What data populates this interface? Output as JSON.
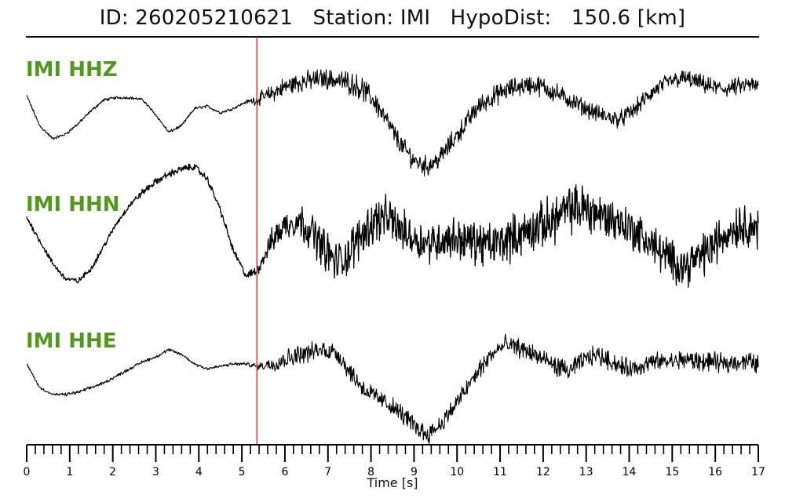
{
  "header": {
    "title": "ID: 260205210621   Station: IMI   HypoDist:   150.6 [km]"
  },
  "chart_data": {
    "type": "line",
    "xlabel": "Time [s]",
    "xlim": [
      0,
      17
    ],
    "x_ticks": [
      "0",
      "1",
      "2",
      "3",
      "4",
      "5",
      "6",
      "7",
      "8",
      "9",
      "10",
      "11",
      "12",
      "13",
      "14",
      "15",
      "16",
      "17"
    ],
    "pick_marker": {
      "time": 5.35,
      "color": "#e8302a"
    },
    "line_color": "#000000",
    "label_color": "#4f9a1a",
    "series": [
      {
        "name": "IMI HHZ",
        "x": [
          0,
          0.3,
          0.6,
          0.9,
          1.2,
          1.5,
          1.8,
          2.1,
          2.4,
          2.7,
          3.0,
          3.3,
          3.6,
          3.9,
          4.2,
          4.5,
          4.8,
          5.1,
          5.35,
          5.7,
          6.0,
          6.3,
          6.6,
          6.9,
          7.2,
          7.5,
          7.8,
          8.1,
          8.4,
          8.7,
          9.0,
          9.3,
          9.6,
          9.9,
          10.2,
          10.5,
          10.8,
          11.1,
          11.4,
          11.7,
          12.0,
          12.3,
          12.6,
          12.9,
          13.2,
          13.5,
          13.8,
          14.1,
          14.4,
          14.7,
          15.0,
          15.3,
          15.6,
          15.9,
          16.2,
          16.5,
          16.8,
          17.0
        ],
        "values": [
          0.15,
          -0.55,
          -0.85,
          -0.75,
          -0.5,
          -0.2,
          0.05,
          0.1,
          0.1,
          0.05,
          -0.3,
          -0.7,
          -0.55,
          -0.15,
          -0.1,
          -0.25,
          -0.15,
          0.0,
          0.05,
          0.2,
          0.35,
          0.45,
          0.5,
          0.55,
          0.5,
          0.45,
          0.3,
          0.0,
          -0.5,
          -1.0,
          -1.35,
          -1.5,
          -1.3,
          -0.9,
          -0.5,
          -0.1,
          0.1,
          0.25,
          0.35,
          0.4,
          0.35,
          0.2,
          0.05,
          -0.1,
          -0.25,
          -0.35,
          -0.4,
          -0.2,
          0.1,
          0.35,
          0.5,
          0.55,
          0.45,
          0.35,
          0.3,
          0.35,
          0.4,
          0.35
        ],
        "noise": [
          0.05,
          0.05,
          0.05,
          0.05,
          0.05,
          0.05,
          0.05,
          0.05,
          0.05,
          0.05,
          0.05,
          0.05,
          0.05,
          0.05,
          0.05,
          0.05,
          0.05,
          0.05,
          0.2,
          0.3,
          0.35,
          0.35,
          0.35,
          0.35,
          0.35,
          0.4,
          0.4,
          0.4,
          0.35,
          0.35,
          0.35,
          0.35,
          0.35,
          0.35,
          0.35,
          0.35,
          0.35,
          0.35,
          0.35,
          0.35,
          0.35,
          0.35,
          0.3,
          0.3,
          0.3,
          0.3,
          0.3,
          0.3,
          0.3,
          0.3,
          0.3,
          0.3,
          0.3,
          0.3,
          0.3,
          0.3,
          0.3,
          0.3
        ]
      },
      {
        "name": "IMI HHN",
        "x": [
          0,
          0.3,
          0.6,
          0.9,
          1.2,
          1.5,
          1.8,
          2.1,
          2.4,
          2.7,
          3.0,
          3.3,
          3.6,
          3.9,
          4.2,
          4.5,
          4.8,
          5.1,
          5.35,
          5.7,
          6.0,
          6.3,
          6.6,
          6.9,
          7.2,
          7.5,
          7.8,
          8.1,
          8.4,
          8.7,
          9.0,
          9.3,
          9.6,
          9.9,
          10.2,
          10.5,
          10.8,
          11.1,
          11.4,
          11.7,
          12.0,
          12.3,
          12.6,
          12.9,
          13.2,
          13.5,
          13.8,
          14.1,
          14.4,
          14.7,
          15.0,
          15.3,
          15.6,
          15.9,
          16.2,
          16.5,
          16.8,
          17.0
        ],
        "values": [
          0.35,
          -0.1,
          -0.55,
          -0.85,
          -0.9,
          -0.65,
          -0.2,
          0.25,
          0.6,
          0.85,
          1.05,
          1.2,
          1.3,
          1.35,
          1.1,
          0.5,
          -0.3,
          -0.8,
          -0.7,
          -0.1,
          0.2,
          0.3,
          0.1,
          -0.25,
          -0.55,
          -0.35,
          0.05,
          0.3,
          0.35,
          0.1,
          -0.05,
          -0.15,
          -0.1,
          -0.05,
          -0.1,
          -0.15,
          -0.2,
          -0.1,
          0.0,
          0.1,
          0.2,
          0.35,
          0.5,
          0.55,
          0.45,
          0.35,
          0.25,
          0.1,
          -0.1,
          -0.3,
          -0.5,
          -0.6,
          -0.45,
          -0.25,
          0.0,
          0.2,
          0.2,
          0.1
        ],
        "noise": [
          0.08,
          0.08,
          0.08,
          0.08,
          0.08,
          0.08,
          0.08,
          0.08,
          0.08,
          0.1,
          0.1,
          0.1,
          0.1,
          0.1,
          0.1,
          0.1,
          0.1,
          0.1,
          0.15,
          0.35,
          0.45,
          0.5,
          0.55,
          0.6,
          0.6,
          0.65,
          0.65,
          0.65,
          0.6,
          0.6,
          0.6,
          0.55,
          0.6,
          0.6,
          0.6,
          0.65,
          0.65,
          0.65,
          0.65,
          0.65,
          0.7,
          0.7,
          0.7,
          0.7,
          0.7,
          0.65,
          0.6,
          0.6,
          0.6,
          0.6,
          0.6,
          0.6,
          0.6,
          0.65,
          0.65,
          0.65,
          0.6,
          0.6
        ]
      },
      {
        "name": "IMI HHE",
        "x": [
          0,
          0.3,
          0.6,
          0.9,
          1.2,
          1.5,
          1.8,
          2.1,
          2.4,
          2.7,
          3.0,
          3.3,
          3.6,
          3.9,
          4.2,
          4.5,
          4.8,
          5.1,
          5.35,
          5.7,
          6.0,
          6.3,
          6.6,
          6.9,
          7.2,
          7.5,
          7.8,
          8.1,
          8.4,
          8.7,
          9.0,
          9.3,
          9.6,
          9.9,
          10.2,
          10.5,
          10.8,
          11.1,
          11.4,
          11.7,
          12.0,
          12.3,
          12.6,
          12.9,
          13.2,
          13.5,
          13.8,
          14.1,
          14.4,
          14.7,
          15.0,
          15.3,
          15.6,
          15.9,
          16.2,
          16.5,
          16.8,
          17.0
        ],
        "values": [
          0.05,
          -0.45,
          -0.6,
          -0.6,
          -0.55,
          -0.45,
          -0.35,
          -0.2,
          -0.05,
          0.1,
          0.2,
          0.35,
          0.25,
          0.05,
          -0.05,
          0.0,
          0.05,
          0.05,
          0.0,
          0.05,
          0.15,
          0.25,
          0.3,
          0.35,
          0.3,
          -0.1,
          -0.45,
          -0.65,
          -0.8,
          -1.0,
          -1.25,
          -1.45,
          -1.25,
          -0.9,
          -0.5,
          -0.1,
          0.25,
          0.45,
          0.4,
          0.3,
          0.15,
          0.0,
          -0.1,
          0.1,
          0.25,
          0.15,
          0.0,
          -0.05,
          0.05,
          0.1,
          0.1,
          0.15,
          0.1,
          0.1,
          0.05,
          0.1,
          0.1,
          0.05
        ],
        "noise": [
          0.04,
          0.04,
          0.04,
          0.05,
          0.05,
          0.05,
          0.05,
          0.05,
          0.05,
          0.05,
          0.05,
          0.05,
          0.05,
          0.05,
          0.05,
          0.05,
          0.05,
          0.05,
          0.1,
          0.25,
          0.3,
          0.3,
          0.3,
          0.3,
          0.3,
          0.3,
          0.3,
          0.3,
          0.3,
          0.3,
          0.3,
          0.3,
          0.3,
          0.3,
          0.3,
          0.3,
          0.3,
          0.3,
          0.3,
          0.3,
          0.3,
          0.3,
          0.3,
          0.3,
          0.3,
          0.3,
          0.3,
          0.3,
          0.3,
          0.3,
          0.3,
          0.3,
          0.3,
          0.3,
          0.3,
          0.3,
          0.3,
          0.3
        ]
      }
    ]
  }
}
